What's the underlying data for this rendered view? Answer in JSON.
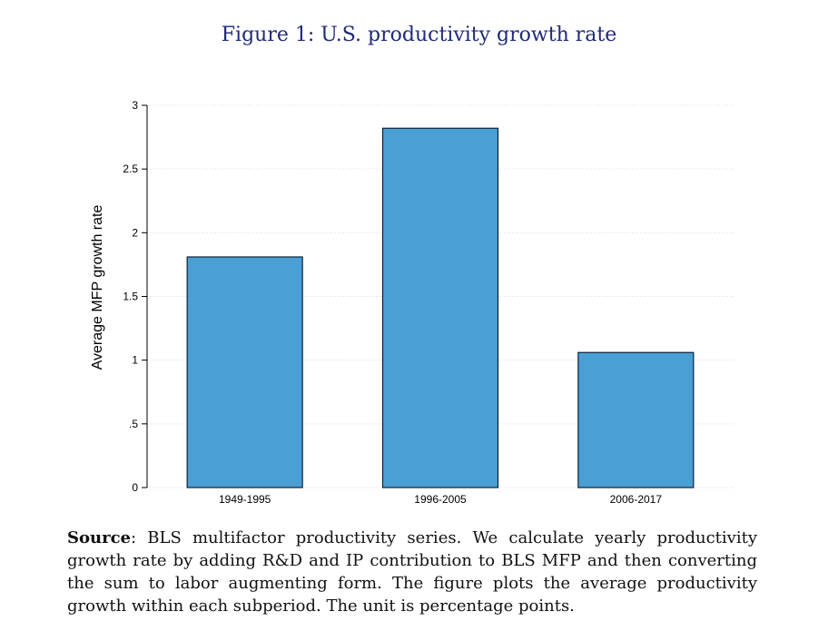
{
  "figure": {
    "title": "Figure 1: U.S. productivity growth rate"
  },
  "chart_data": {
    "type": "bar",
    "categories": [
      "1949-1995",
      "1996-2005",
      "2006-2017"
    ],
    "values": [
      1.81,
      2.82,
      1.06
    ],
    "xlabel": "",
    "ylabel": "Average MFP growth rate",
    "ylim": [
      0,
      3
    ],
    "yticks": [
      0,
      0.5,
      1,
      1.5,
      2,
      2.5,
      3
    ],
    "ytick_labels": [
      "0",
      ".5",
      "1",
      "1.5",
      "2",
      "2.5",
      "3"
    ],
    "grid": true,
    "bar_color": "#4a9fd4",
    "bar_edge_color": "#0d2233"
  },
  "caption": {
    "lead": "Source",
    "text": ": BLS multifactor productivity series. We calculate yearly productivity growth rate by adding R&D and IP contribution to BLS MFP and then converting the sum to labor augmenting form. The figure plots the average productivity growth within each subperiod. The unit is percentage points."
  }
}
